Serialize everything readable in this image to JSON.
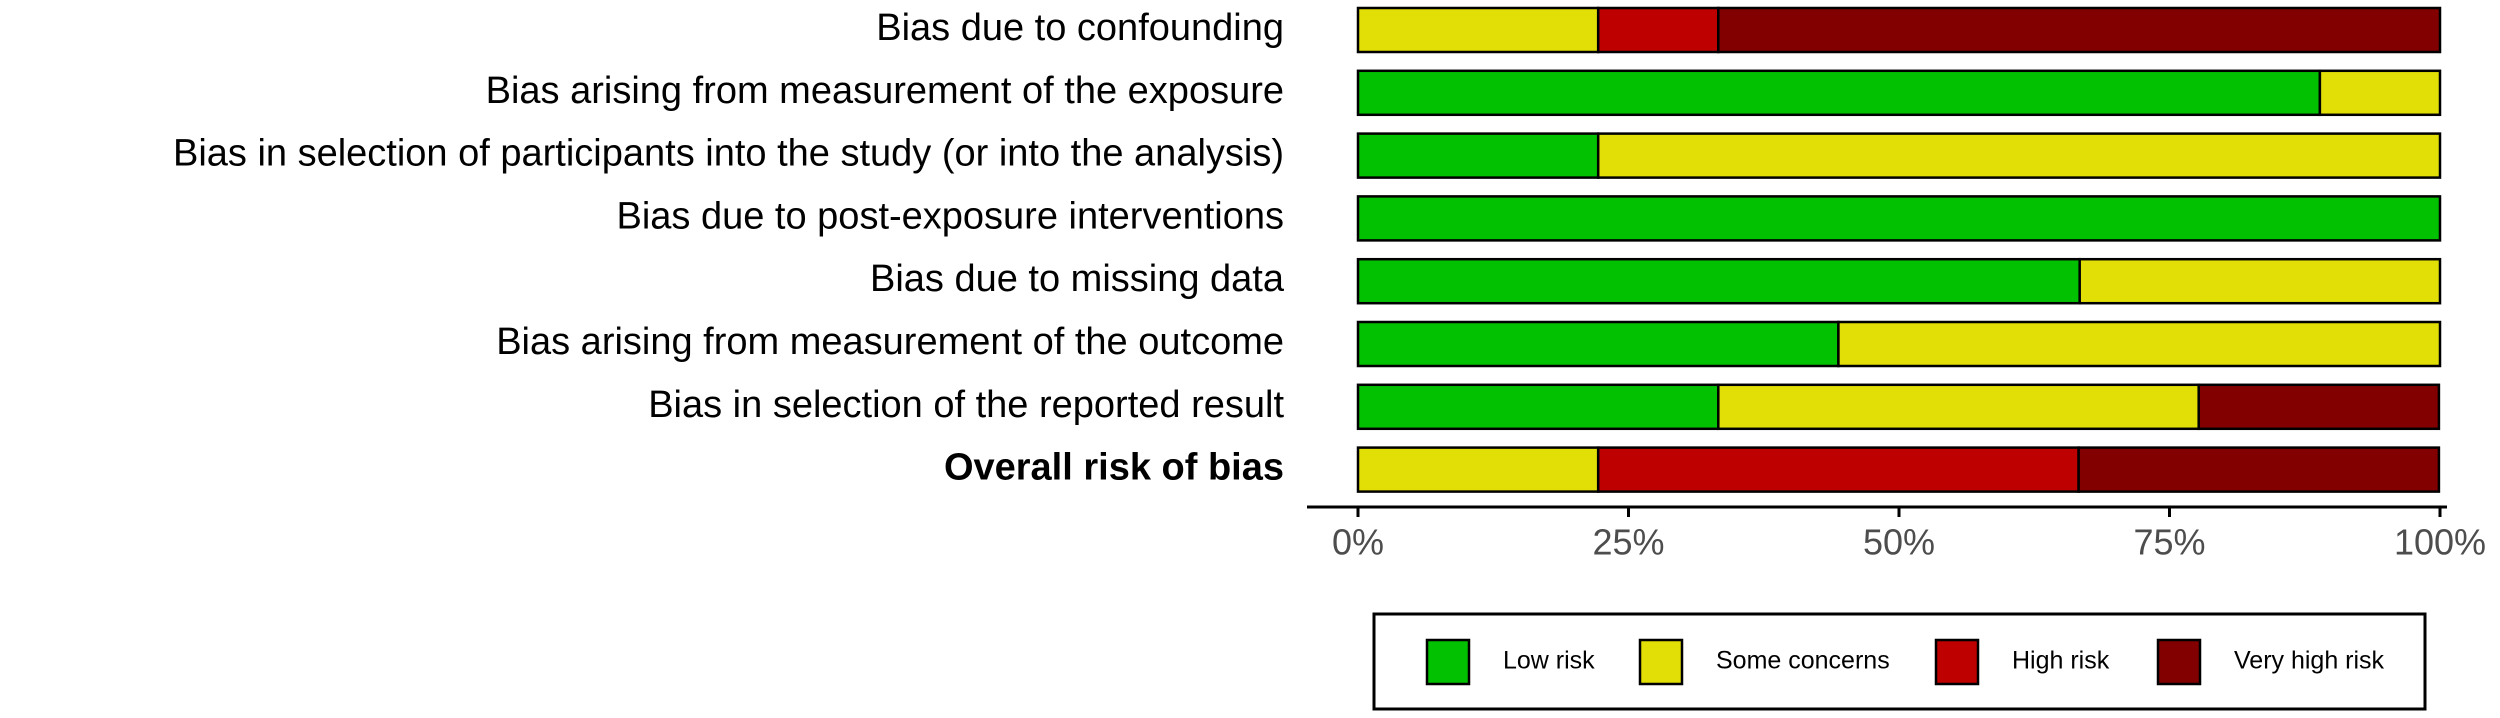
{
  "chart_data": {
    "type": "stacked-bar-horizontal",
    "categories": [
      "Bias due to confounding",
      "Bias arising from measurement of the exposure",
      "Bias in selection of participants into the study (or into the analysis)",
      "Bias due to post-exposure interventions",
      "Bias due to missing data",
      "Bias arising from measurement of the outcome",
      "Bias in selection of the reported result",
      "Overall risk of bias"
    ],
    "series": [
      {
        "name": "Low risk",
        "color": "#02C100",
        "values": [
          0,
          88.9,
          22.2,
          100,
          66.7,
          44.4,
          33.3,
          0
        ]
      },
      {
        "name": "Some concerns",
        "color": "#E2DF07",
        "values": [
          22.2,
          11.1,
          77.8,
          0,
          33.3,
          55.6,
          44.4,
          22.2
        ]
      },
      {
        "name": "High risk",
        "color": "#BF0000",
        "values": [
          11.1,
          0,
          0,
          0,
          0,
          0,
          0,
          44.4
        ]
      },
      {
        "name": "Very high risk",
        "color": "#820000",
        "values": [
          66.7,
          0,
          0,
          0,
          0,
          0,
          22.2,
          33.3
        ]
      }
    ],
    "xlim": [
      0,
      100
    ],
    "xticks": [
      {
        "value": 0,
        "label": "0%"
      },
      {
        "value": 25,
        "label": "25%"
      },
      {
        "value": 50,
        "label": "50%"
      },
      {
        "value": 75,
        "label": "75%"
      },
      {
        "value": 100,
        "label": "100%"
      }
    ],
    "legend": "bottom"
  }
}
